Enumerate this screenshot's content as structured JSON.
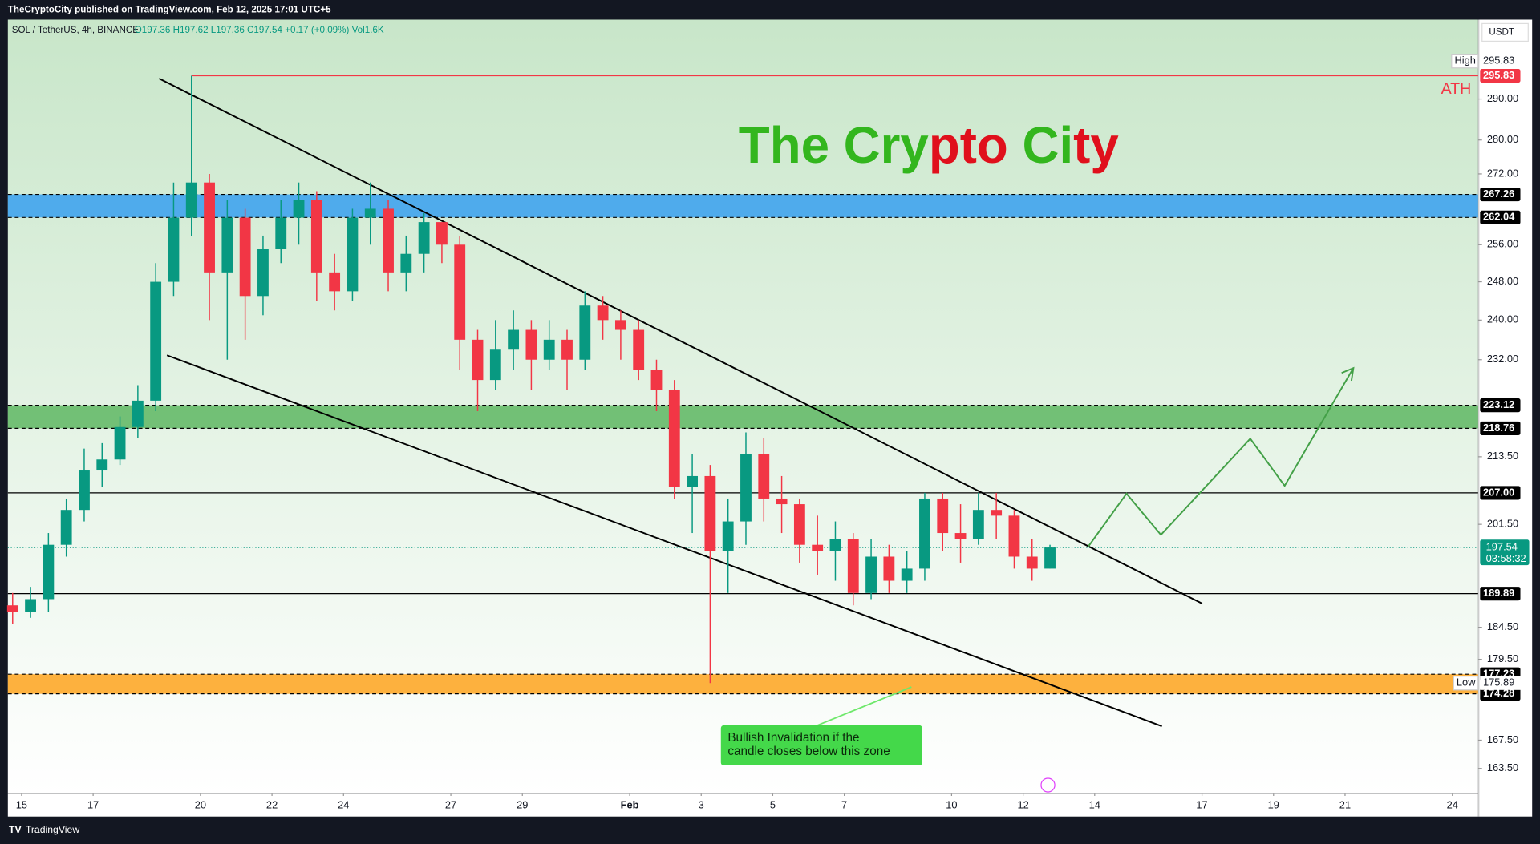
{
  "header": {
    "publisher": "TheCryptoCity published on TradingView.com, Feb 12, 2025 17:01 UTC+5",
    "symbol": "SOL / TetherUS, 4h, BINANCE",
    "ohlc": "O197.36 H197.62 L197.36 C197.54 +0.17 (+0.09%) Vol1.6K",
    "currency": "USDT"
  },
  "footer": {
    "brand": "TradingView"
  },
  "chart_data": {
    "type": "candlestick",
    "watermark": [
      {
        "text": "The Cry",
        "color": "#33b61e"
      },
      {
        "text": "pto",
        "color": "#e0101c"
      },
      {
        "text": " Ci",
        "color": "#33b61e"
      },
      {
        "text": "ty",
        "color": "#e0101c"
      }
    ],
    "up_color": "#089981",
    "down_color": "#f23645",
    "x": [
      14.75,
      15.25,
      15.75,
      16.25,
      16.75,
      17.25,
      17.75,
      18.25,
      18.75,
      19.25,
      19.75,
      20.25,
      20.75,
      21.25,
      21.75,
      22.25,
      22.75,
      23.25,
      23.75,
      24.25,
      24.75,
      25.25,
      25.75,
      26.25,
      26.75,
      27.25,
      27.75,
      28.25,
      28.75,
      29.25,
      29.75,
      30.25,
      30.75,
      31.25,
      31.75,
      32.25,
      32.75,
      33.25,
      33.75,
      34.25,
      34.75,
      35.25,
      35.75,
      36.25,
      36.75,
      37.25,
      37.75,
      38.25,
      38.75,
      39.25,
      39.75,
      40.25,
      40.75,
      41.25,
      41.75,
      42.25,
      42.75,
      43.25,
      43.75
    ],
    "open": [
      188,
      187,
      189,
      198,
      204,
      211,
      213,
      219,
      224,
      248,
      262,
      270,
      250,
      262,
      245,
      255,
      262,
      266,
      250,
      246,
      262,
      264,
      250,
      254,
      261,
      256,
      236,
      228,
      234,
      238,
      232,
      236,
      232,
      243,
      240,
      238,
      230,
      226,
      208,
      210,
      197,
      202,
      214,
      206,
      205,
      198,
      197,
      199,
      190,
      196,
      192,
      194,
      206,
      200,
      199,
      204,
      203,
      196,
      194
    ],
    "high": [
      190,
      191,
      200,
      206,
      215,
      216,
      221,
      227,
      252,
      270,
      295.83,
      272,
      266,
      264,
      258,
      266,
      270,
      268,
      254,
      264,
      270,
      266,
      258,
      263,
      260,
      258,
      238,
      240,
      242,
      240,
      240,
      238,
      246,
      245,
      242,
      240,
      232,
      228,
      214,
      212,
      206,
      218,
      217,
      210,
      206,
      203,
      202,
      200,
      199,
      198,
      197,
      207,
      207,
      205,
      207,
      207,
      204,
      199,
      198
    ],
    "low": [
      185,
      186,
      187,
      196,
      202,
      208,
      212,
      217,
      222,
      245,
      258,
      240,
      232,
      236,
      241,
      252,
      256,
      244,
      242,
      244,
      256,
      246,
      246,
      250,
      252,
      230,
      222,
      226,
      230,
      226,
      230,
      226,
      230,
      236,
      232,
      228,
      222,
      206,
      200,
      175.89,
      190,
      198,
      202,
      200,
      195,
      193,
      192,
      188,
      189,
      190,
      190,
      192,
      197,
      195,
      198,
      199,
      194,
      192,
      194
    ],
    "close": [
      187,
      189,
      198,
      204,
      211,
      213,
      219,
      224,
      248,
      262,
      270,
      250,
      262,
      245,
      255,
      262,
      266,
      250,
      246,
      262,
      264,
      250,
      254,
      261,
      256,
      236,
      228,
      234,
      238,
      232,
      236,
      232,
      243,
      240,
      238,
      230,
      226,
      208,
      210,
      197,
      202,
      214,
      206,
      205,
      198,
      197,
      199,
      190,
      196,
      192,
      194,
      206,
      200,
      199,
      204,
      203,
      196,
      194,
      197.54
    ],
    "xlim": [
      14.616,
      55.72
    ],
    "xticks": [
      15,
      17,
      20,
      22,
      24,
      27,
      29,
      {
        "value": 32,
        "label": "Feb"
      },
      {
        "value": 34,
        "label": "3"
      },
      {
        "value": 36,
        "label": "5"
      },
      {
        "value": 38,
        "label": "7"
      },
      {
        "value": 41,
        "label": "10"
      },
      {
        "value": 43,
        "label": "12"
      },
      {
        "value": 45,
        "label": "14"
      },
      {
        "value": 48,
        "label": "17"
      },
      {
        "value": 50,
        "label": "19"
      },
      {
        "value": 52,
        "label": "21"
      },
      {
        "value": 55,
        "label": "24"
      }
    ],
    "ylim": [
      160.1,
      310.4
    ],
    "log_scale": true,
    "grid": false,
    "yticks": [
      {
        "value": 163.5,
        "label": "163.50"
      },
      {
        "value": 167.5,
        "label": "167.50"
      },
      {
        "value": 179.5,
        "label": "179.50"
      },
      {
        "value": 184.5,
        "label": "184.50"
      },
      {
        "value": 201.5,
        "label": "201.50"
      },
      {
        "value": 213.5,
        "label": "213.50"
      },
      {
        "value": 232,
        "label": "232.00"
      },
      {
        "value": 240,
        "label": "240.00"
      },
      {
        "value": 248,
        "label": "248.00"
      },
      {
        "value": 256,
        "label": "256.00"
      },
      {
        "value": 272,
        "label": "272.00"
      },
      {
        "value": 280,
        "label": "280.00"
      },
      {
        "value": 290,
        "label": "290.00"
      }
    ],
    "zones": [
      {
        "low": 262.04,
        "high": 267.26,
        "color": "#2196f3"
      },
      {
        "low": 218.76,
        "high": 223.12,
        "color": "#4caf50"
      },
      {
        "low": 174.28,
        "high": 177.23,
        "color": "#ff9800"
      }
    ],
    "lines": [
      {
        "value": 207,
        "label": "207.00"
      },
      {
        "value": 189.89,
        "label": "189.89"
      }
    ],
    "ath": {
      "value": 295.83,
      "label": "ATH"
    },
    "high_marker": {
      "label": "High",
      "value": 295.83
    },
    "low_marker": {
      "label": "Low",
      "value": 175.89
    },
    "last": {
      "value": 197.54,
      "countdown": "03:58:32"
    },
    "annotation": [
      "Bullish Invalidation if the",
      "candle closes below this zone"
    ]
  }
}
